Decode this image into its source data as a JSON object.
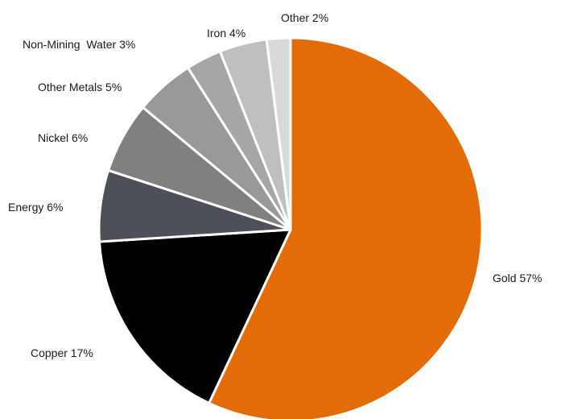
{
  "chart_data": {
    "type": "pie",
    "start": "top",
    "direction": "clockwise",
    "legend": "none",
    "slices": [
      {
        "label": "Gold 57%",
        "name": "Gold",
        "value": 57,
        "color": "#e36c09"
      },
      {
        "label": "Copper 17%",
        "name": "Copper",
        "value": 17,
        "color": "#000000"
      },
      {
        "label": "Energy 6%",
        "name": "Energy",
        "value": 6,
        "color": "#4d5058"
      },
      {
        "label": "Nickel 6%",
        "name": "Nickel",
        "value": 6,
        "color": "#808080"
      },
      {
        "label": "Other Metals 5%",
        "name": "Other Metals",
        "value": 5,
        "color": "#999999"
      },
      {
        "label": "Non-Mining  Water 3%",
        "name": "Non-Mining Water",
        "value": 3,
        "color": "#a6a6a6"
      },
      {
        "label": "Iron 4%",
        "name": "Iron",
        "value": 4,
        "color": "#bfbfbf"
      },
      {
        "label": "Other 2%",
        "name": "Other",
        "value": 2,
        "color": "#d9d9d9"
      }
    ]
  }
}
